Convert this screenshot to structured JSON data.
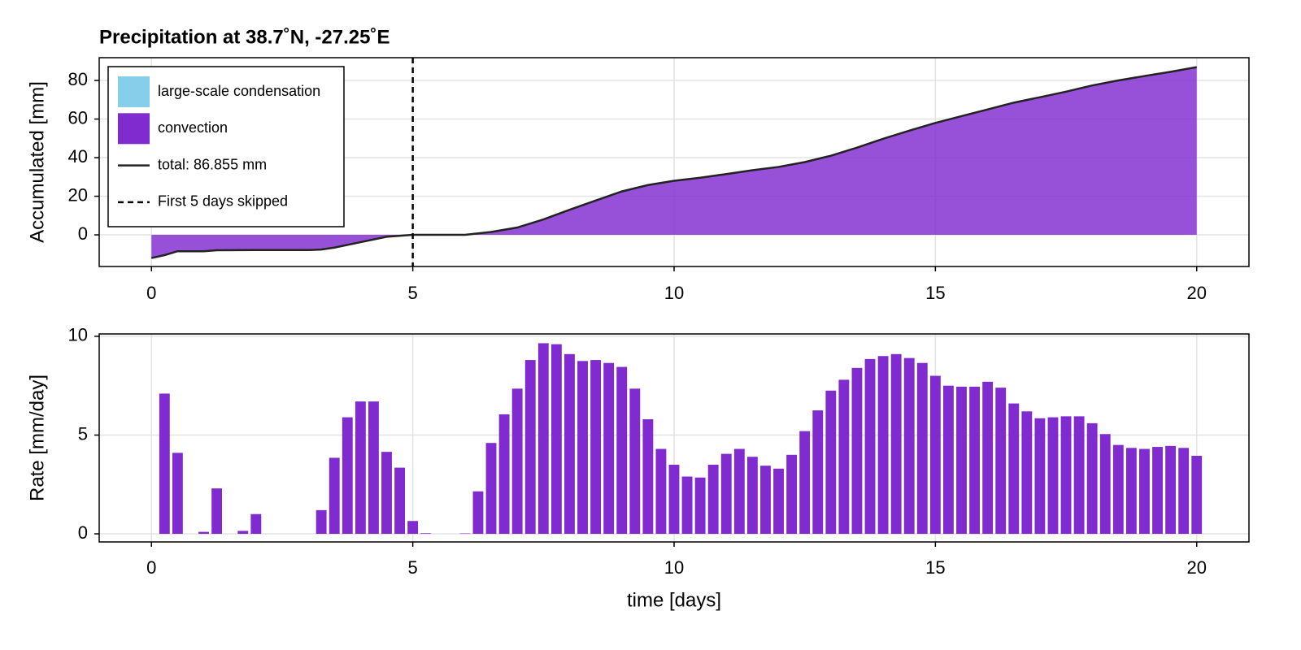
{
  "chart_data": [
    {
      "type": "area",
      "title": "Precipitation at 38.7˚N, -27.25˚E",
      "y_label": "Accumulated [mm]",
      "x": [
        0,
        0.25,
        0.5,
        1.0,
        1.25,
        2.0,
        3.0,
        3.25,
        3.5,
        4.0,
        4.5,
        5.0,
        5.5,
        6.0,
        6.5,
        7.0,
        7.5,
        8.0,
        8.5,
        9.0,
        9.5,
        10.0,
        10.5,
        11.0,
        11.5,
        12.0,
        12.5,
        13.0,
        13.5,
        14.0,
        14.5,
        15.0,
        15.5,
        16.0,
        16.5,
        17.0,
        17.5,
        18.0,
        18.5,
        19.0,
        19.5,
        20.0
      ],
      "series": [
        {
          "name": "large-scale condensation",
          "color": "#87ceeb",
          "values": [
            0,
            0,
            0,
            0,
            0,
            0,
            0,
            0,
            0,
            0,
            0,
            0,
            0,
            0,
            0,
            0,
            0,
            0,
            0,
            0,
            0,
            0,
            0,
            0,
            0,
            0,
            0,
            0,
            0,
            0,
            0,
            0,
            0,
            0,
            0,
            0,
            0,
            0,
            0,
            0,
            0,
            0
          ]
        },
        {
          "name": "convection",
          "color": "#7f2bd0",
          "values": [
            -12,
            -10.5,
            -8.5,
            -8.5,
            -8.0,
            -7.9,
            -7.9,
            -7.6,
            -6.6,
            -3.8,
            -1.0,
            0,
            0,
            0,
            1.5,
            3.8,
            8.0,
            13,
            17.8,
            22.5,
            25.8,
            28,
            29.6,
            31.5,
            33.5,
            35.2,
            37.7,
            41,
            45.2,
            49.8,
            54,
            58,
            61.5,
            65,
            68.5,
            71.3,
            74.2,
            77.4,
            80,
            82.3,
            84.5,
            86.9
          ]
        }
      ],
      "total_line": {
        "name": "total: 86.855 mm",
        "color": "#222222"
      },
      "vline": {
        "value": 5,
        "label": "First 5 days skipped",
        "color": "#000000"
      },
      "xlim": [
        -1,
        21
      ],
      "xticks": [
        0,
        5,
        10,
        15,
        20
      ],
      "ylim": [
        -16.4,
        91.8
      ],
      "yticks": [
        0,
        20,
        40,
        60,
        80
      ],
      "grid": true,
      "legend": "top-left"
    },
    {
      "type": "bar",
      "y_label": "Rate [mm/day]",
      "x_label": "time [days]",
      "color": "#7f2bd0",
      "x": [
        0.25,
        0.5,
        0.75,
        1.0,
        1.25,
        1.5,
        1.75,
        2.0,
        2.25,
        2.5,
        2.75,
        3.0,
        3.25,
        3.5,
        3.75,
        4.0,
        4.25,
        4.5,
        4.75,
        5.0,
        5.25,
        5.5,
        5.75,
        6.0,
        6.25,
        6.5,
        6.75,
        7.0,
        7.25,
        7.5,
        7.75,
        8.0,
        8.25,
        8.5,
        8.75,
        9.0,
        9.25,
        9.5,
        9.75,
        10.0,
        10.25,
        10.5,
        10.75,
        11.0,
        11.25,
        11.5,
        11.75,
        12.0,
        12.25,
        12.5,
        12.75,
        13.0,
        13.25,
        13.5,
        13.75,
        14.0,
        14.25,
        14.5,
        14.75,
        15.0,
        15.25,
        15.5,
        15.75,
        16.0,
        16.25,
        16.5,
        16.75,
        17.0,
        17.25,
        17.5,
        17.75,
        18.0,
        18.25,
        18.5,
        18.75,
        19.0,
        19.25,
        19.5,
        19.75,
        20.0
      ],
      "values": [
        7.1,
        4.1,
        0,
        0.1,
        2.3,
        0,
        0.15,
        1.0,
        0,
        0,
        0,
        0,
        1.2,
        3.85,
        5.9,
        6.7,
        6.7,
        4.15,
        3.35,
        0.65,
        0.03,
        0,
        0,
        0.02,
        2.15,
        4.6,
        6.05,
        7.35,
        8.8,
        9.65,
        9.6,
        9.1,
        8.75,
        8.8,
        8.65,
        8.45,
        7.35,
        5.8,
        4.3,
        3.5,
        2.9,
        2.85,
        3.5,
        4.05,
        4.3,
        3.9,
        3.45,
        3.3,
        4.0,
        5.2,
        6.25,
        7.25,
        7.8,
        8.4,
        8.85,
        9.0,
        9.1,
        8.9,
        8.65,
        8.0,
        7.5,
        7.45,
        7.45,
        7.7,
        7.4,
        6.6,
        6.2,
        5.85,
        5.9,
        5.95,
        5.95,
        5.6,
        5.05,
        4.5,
        4.35,
        4.3,
        4.4,
        4.45,
        4.35,
        3.95
      ],
      "xlim": [
        -1,
        21
      ],
      "xticks": [
        0,
        5,
        10,
        15,
        20
      ],
      "ylim": [
        -0.41,
        10.12
      ],
      "yticks": [
        0,
        5,
        10
      ],
      "grid": true
    }
  ]
}
